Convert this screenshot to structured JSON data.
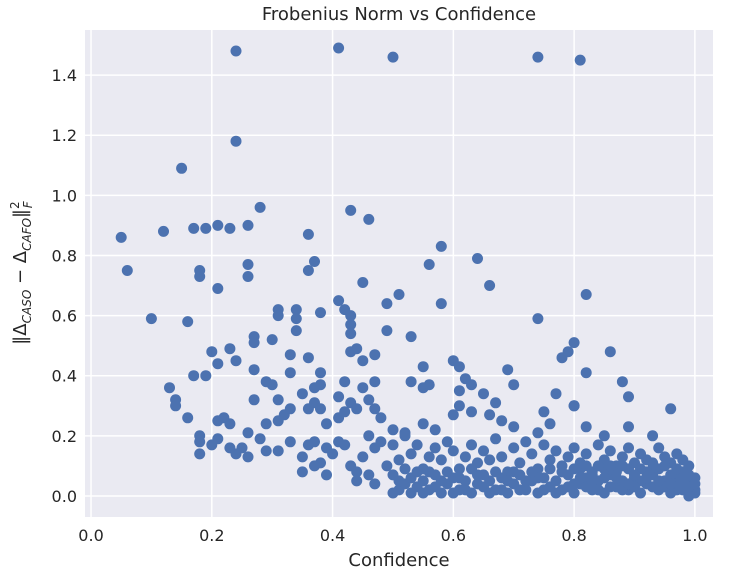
{
  "chart_data": {
    "type": "scatter",
    "title": "Frobenius Norm vs Confidence",
    "xlabel": "Confidence",
    "ylabel": "‖Δ_CASO − Δ_CAFO‖²_F",
    "xlim": [
      -0.01,
      1.03
    ],
    "ylim": [
      -0.07,
      1.55
    ],
    "xticks": [
      0.0,
      0.2,
      0.4,
      0.6,
      0.8,
      1.0
    ],
    "xtick_labels": [
      "0.0",
      "0.2",
      "0.4",
      "0.6",
      "0.8",
      "1.0"
    ],
    "yticks": [
      0.0,
      0.2,
      0.4,
      0.6,
      0.8,
      1.0,
      1.2,
      1.4
    ],
    "ytick_labels": [
      "0.0",
      "0.2",
      "0.4",
      "0.6",
      "0.8",
      "1.0",
      "1.2",
      "1.4"
    ],
    "grid": true,
    "colors": {
      "background": "#eaeaf2",
      "grid": "#ffffff",
      "marker": "#4c72b0",
      "text": "#262626"
    },
    "points": [
      [
        0.24,
        1.48
      ],
      [
        0.41,
        1.49
      ],
      [
        0.5,
        1.46
      ],
      [
        0.74,
        1.46
      ],
      [
        0.81,
        1.45
      ],
      [
        0.24,
        1.18
      ],
      [
        0.15,
        1.09
      ],
      [
        0.28,
        0.96
      ],
      [
        0.43,
        0.95
      ],
      [
        0.46,
        0.92
      ],
      [
        0.05,
        0.86
      ],
      [
        0.12,
        0.88
      ],
      [
        0.17,
        0.89
      ],
      [
        0.19,
        0.89
      ],
      [
        0.21,
        0.9
      ],
      [
        0.23,
        0.89
      ],
      [
        0.26,
        0.9
      ],
      [
        0.36,
        0.87
      ],
      [
        0.58,
        0.83
      ],
      [
        0.64,
        0.79
      ],
      [
        0.06,
        0.75
      ],
      [
        0.18,
        0.75
      ],
      [
        0.18,
        0.73
      ],
      [
        0.26,
        0.77
      ],
      [
        0.26,
        0.73
      ],
      [
        0.36,
        0.75
      ],
      [
        0.37,
        0.78
      ],
      [
        0.45,
        0.71
      ],
      [
        0.56,
        0.77
      ],
      [
        0.66,
        0.7
      ],
      [
        0.21,
        0.69
      ],
      [
        0.41,
        0.65
      ],
      [
        0.49,
        0.64
      ],
      [
        0.51,
        0.67
      ],
      [
        0.58,
        0.64
      ],
      [
        0.82,
        0.67
      ],
      [
        0.1,
        0.59
      ],
      [
        0.16,
        0.58
      ],
      [
        0.31,
        0.62
      ],
      [
        0.31,
        0.6
      ],
      [
        0.34,
        0.62
      ],
      [
        0.34,
        0.59
      ],
      [
        0.38,
        0.61
      ],
      [
        0.42,
        0.62
      ],
      [
        0.43,
        0.6
      ],
      [
        0.43,
        0.57
      ],
      [
        0.74,
        0.59
      ],
      [
        0.27,
        0.53
      ],
      [
        0.27,
        0.51
      ],
      [
        0.3,
        0.52
      ],
      [
        0.34,
        0.55
      ],
      [
        0.43,
        0.54
      ],
      [
        0.44,
        0.49
      ],
      [
        0.49,
        0.55
      ],
      [
        0.53,
        0.53
      ],
      [
        0.8,
        0.51
      ],
      [
        0.86,
        0.48
      ],
      [
        0.79,
        0.48
      ],
      [
        0.2,
        0.48
      ],
      [
        0.23,
        0.49
      ],
      [
        0.24,
        0.45
      ],
      [
        0.21,
        0.44
      ],
      [
        0.33,
        0.47
      ],
      [
        0.36,
        0.46
      ],
      [
        0.38,
        0.41
      ],
      [
        0.43,
        0.48
      ],
      [
        0.45,
        0.45
      ],
      [
        0.47,
        0.47
      ],
      [
        0.55,
        0.43
      ],
      [
        0.6,
        0.45
      ],
      [
        0.61,
        0.43
      ],
      [
        0.69,
        0.42
      ],
      [
        0.78,
        0.46
      ],
      [
        0.82,
        0.41
      ],
      [
        0.13,
        0.36
      ],
      [
        0.14,
        0.32
      ],
      [
        0.17,
        0.4
      ],
      [
        0.19,
        0.4
      ],
      [
        0.27,
        0.42
      ],
      [
        0.27,
        0.32
      ],
      [
        0.29,
        0.38
      ],
      [
        0.3,
        0.37
      ],
      [
        0.31,
        0.32
      ],
      [
        0.33,
        0.41
      ],
      [
        0.35,
        0.34
      ],
      [
        0.37,
        0.36
      ],
      [
        0.38,
        0.37
      ],
      [
        0.41,
        0.33
      ],
      [
        0.42,
        0.38
      ],
      [
        0.45,
        0.36
      ],
      [
        0.47,
        0.38
      ],
      [
        0.53,
        0.38
      ],
      [
        0.55,
        0.36
      ],
      [
        0.56,
        0.37
      ],
      [
        0.61,
        0.35
      ],
      [
        0.62,
        0.39
      ],
      [
        0.63,
        0.37
      ],
      [
        0.65,
        0.34
      ],
      [
        0.67,
        0.31
      ],
      [
        0.7,
        0.37
      ],
      [
        0.77,
        0.34
      ],
      [
        0.8,
        0.3
      ],
      [
        0.88,
        0.38
      ],
      [
        0.89,
        0.33
      ],
      [
        0.14,
        0.3
      ],
      [
        0.16,
        0.26
      ],
      [
        0.18,
        0.2
      ],
      [
        0.18,
        0.14
      ],
      [
        0.21,
        0.25
      ],
      [
        0.22,
        0.26
      ],
      [
        0.23,
        0.24
      ],
      [
        0.26,
        0.21
      ],
      [
        0.29,
        0.24
      ],
      [
        0.31,
        0.25
      ],
      [
        0.32,
        0.27
      ],
      [
        0.33,
        0.29
      ],
      [
        0.36,
        0.29
      ],
      [
        0.37,
        0.31
      ],
      [
        0.38,
        0.29
      ],
      [
        0.39,
        0.24
      ],
      [
        0.41,
        0.26
      ],
      [
        0.42,
        0.28
      ],
      [
        0.43,
        0.31
      ],
      [
        0.44,
        0.29
      ],
      [
        0.46,
        0.32
      ],
      [
        0.47,
        0.29
      ],
      [
        0.48,
        0.26
      ],
      [
        0.5,
        0.22
      ],
      [
        0.52,
        0.21
      ],
      [
        0.55,
        0.24
      ],
      [
        0.57,
        0.22
      ],
      [
        0.6,
        0.27
      ],
      [
        0.61,
        0.3
      ],
      [
        0.63,
        0.28
      ],
      [
        0.66,
        0.27
      ],
      [
        0.68,
        0.25
      ],
      [
        0.7,
        0.23
      ],
      [
        0.74,
        0.21
      ],
      [
        0.75,
        0.28
      ],
      [
        0.76,
        0.24
      ],
      [
        0.8,
        0.3
      ],
      [
        0.82,
        0.23
      ],
      [
        0.85,
        0.2
      ],
      [
        0.89,
        0.23
      ],
      [
        0.93,
        0.2
      ],
      [
        0.96,
        0.29
      ],
      [
        0.18,
        0.18
      ],
      [
        0.2,
        0.17
      ],
      [
        0.21,
        0.19
      ],
      [
        0.23,
        0.16
      ],
      [
        0.24,
        0.14
      ],
      [
        0.25,
        0.16
      ],
      [
        0.26,
        0.13
      ],
      [
        0.28,
        0.19
      ],
      [
        0.29,
        0.15
      ],
      [
        0.31,
        0.15
      ],
      [
        0.33,
        0.18
      ],
      [
        0.35,
        0.13
      ],
      [
        0.36,
        0.17
      ],
      [
        0.37,
        0.18
      ],
      [
        0.38,
        0.11
      ],
      [
        0.39,
        0.07
      ],
      [
        0.39,
        0.16
      ],
      [
        0.4,
        0.14
      ],
      [
        0.41,
        0.18
      ],
      [
        0.42,
        0.17
      ],
      [
        0.43,
        0.1
      ],
      [
        0.44,
        0.08
      ],
      [
        0.45,
        0.13
      ],
      [
        0.46,
        0.2
      ],
      [
        0.47,
        0.16
      ],
      [
        0.48,
        0.18
      ],
      [
        0.49,
        0.1
      ],
      [
        0.5,
        0.17
      ],
      [
        0.51,
        0.12
      ],
      [
        0.52,
        0.2
      ],
      [
        0.53,
        0.14
      ],
      [
        0.54,
        0.17
      ],
      [
        0.55,
        0.09
      ],
      [
        0.56,
        0.13
      ],
      [
        0.57,
        0.16
      ],
      [
        0.58,
        0.12
      ],
      [
        0.59,
        0.18
      ],
      [
        0.6,
        0.15
      ],
      [
        0.61,
        0.09
      ],
      [
        0.62,
        0.13
      ],
      [
        0.63,
        0.17
      ],
      [
        0.64,
        0.11
      ],
      [
        0.65,
        0.15
      ],
      [
        0.66,
        0.12
      ],
      [
        0.67,
        0.19
      ],
      [
        0.68,
        0.13
      ],
      [
        0.69,
        0.08
      ],
      [
        0.7,
        0.16
      ],
      [
        0.71,
        0.11
      ],
      [
        0.72,
        0.18
      ],
      [
        0.73,
        0.14
      ],
      [
        0.74,
        0.09
      ],
      [
        0.75,
        0.17
      ],
      [
        0.76,
        0.12
      ],
      [
        0.77,
        0.15
      ],
      [
        0.78,
        0.1
      ],
      [
        0.79,
        0.13
      ],
      [
        0.8,
        0.16
      ],
      [
        0.81,
        0.11
      ],
      [
        0.82,
        0.14
      ],
      [
        0.83,
        0.08
      ],
      [
        0.84,
        0.17
      ],
      [
        0.85,
        0.12
      ],
      [
        0.86,
        0.15
      ],
      [
        0.87,
        0.1
      ],
      [
        0.88,
        0.13
      ],
      [
        0.89,
        0.16
      ],
      [
        0.9,
        0.11
      ],
      [
        0.91,
        0.14
      ],
      [
        0.92,
        0.12
      ],
      [
        0.93,
        0.09
      ],
      [
        0.94,
        0.16
      ],
      [
        0.95,
        0.13
      ],
      [
        0.96,
        0.11
      ],
      [
        0.97,
        0.14
      ],
      [
        0.98,
        0.12
      ],
      [
        0.99,
        0.1
      ],
      [
        0.35,
        0.08
      ],
      [
        0.37,
        0.1
      ],
      [
        0.44,
        0.05
      ],
      [
        0.46,
        0.07
      ],
      [
        0.47,
        0.04
      ],
      [
        0.5,
        0.07
      ],
      [
        0.51,
        0.02
      ],
      [
        0.52,
        0.04
      ],
      [
        0.53,
        0.01
      ],
      [
        0.53,
        0.06
      ],
      [
        0.54,
        0.03
      ],
      [
        0.55,
        0.05
      ],
      [
        0.56,
        0.02
      ],
      [
        0.57,
        0.07
      ],
      [
        0.58,
        0.01
      ],
      [
        0.59,
        0.04
      ],
      [
        0.6,
        0.06
      ],
      [
        0.61,
        0.02
      ],
      [
        0.62,
        0.05
      ],
      [
        0.63,
        0.01
      ],
      [
        0.64,
        0.07
      ],
      [
        0.65,
        0.03
      ],
      [
        0.66,
        0.05
      ],
      [
        0.67,
        0.02
      ],
      [
        0.68,
        0.06
      ],
      [
        0.69,
        0.01
      ],
      [
        0.7,
        0.04
      ],
      [
        0.71,
        0.07
      ],
      [
        0.72,
        0.02
      ],
      [
        0.73,
        0.05
      ],
      [
        0.74,
        0.01
      ],
      [
        0.75,
        0.06
      ],
      [
        0.76,
        0.03
      ],
      [
        0.77,
        0.05
      ],
      [
        0.78,
        0.02
      ],
      [
        0.79,
        0.07
      ],
      [
        0.8,
        0.01
      ],
      [
        0.81,
        0.04
      ],
      [
        0.82,
        0.06
      ],
      [
        0.83,
        0.02
      ],
      [
        0.84,
        0.05
      ],
      [
        0.85,
        0.01
      ],
      [
        0.86,
        0.07
      ],
      [
        0.87,
        0.03
      ],
      [
        0.88,
        0.05
      ],
      [
        0.89,
        0.02
      ],
      [
        0.9,
        0.06
      ],
      [
        0.91,
        0.01
      ],
      [
        0.92,
        0.04
      ],
      [
        0.93,
        0.07
      ],
      [
        0.94,
        0.02
      ],
      [
        0.95,
        0.05
      ],
      [
        0.96,
        0.01
      ],
      [
        0.97,
        0.06
      ],
      [
        0.98,
        0.03
      ],
      [
        0.99,
        0.05
      ],
      [
        1.0,
        0.02
      ],
      [
        1.0,
        0.01
      ],
      [
        0.99,
        0.0
      ],
      [
        0.98,
        0.08
      ],
      [
        0.97,
        0.02
      ],
      [
        0.96,
        0.07
      ],
      [
        0.95,
        0.03
      ],
      [
        0.94,
        0.09
      ],
      [
        0.93,
        0.03
      ],
      [
        0.92,
        0.08
      ],
      [
        0.91,
        0.05
      ],
      [
        0.9,
        0.03
      ],
      [
        0.89,
        0.09
      ],
      [
        0.88,
        0.02
      ],
      [
        0.87,
        0.08
      ],
      [
        0.86,
        0.03
      ],
      [
        0.85,
        0.09
      ],
      [
        0.84,
        0.02
      ],
      [
        0.83,
        0.07
      ],
      [
        0.82,
        0.03
      ],
      [
        0.81,
        0.09
      ],
      [
        0.8,
        0.04
      ],
      [
        0.79,
        0.03
      ],
      [
        0.78,
        0.08
      ],
      [
        0.77,
        0.01
      ],
      [
        0.76,
        0.09
      ],
      [
        0.75,
        0.02
      ],
      [
        0.74,
        0.06
      ],
      [
        0.73,
        0.08
      ],
      [
        0.72,
        0.05
      ],
      [
        0.71,
        0.02
      ],
      [
        0.7,
        0.08
      ],
      [
        0.69,
        0.05
      ],
      [
        0.68,
        0.02
      ],
      [
        0.67,
        0.08
      ],
      [
        0.66,
        0.01
      ],
      [
        0.65,
        0.07
      ],
      [
        0.64,
        0.04
      ],
      [
        0.63,
        0.09
      ],
      [
        0.62,
        0.02
      ],
      [
        0.61,
        0.06
      ],
      [
        0.6,
        0.01
      ],
      [
        0.59,
        0.08
      ],
      [
        0.58,
        0.05
      ],
      [
        0.57,
        0.03
      ],
      [
        0.56,
        0.08
      ],
      [
        0.55,
        0.01
      ],
      [
        0.54,
        0.08
      ],
      [
        0.52,
        0.09
      ],
      [
        0.51,
        0.05
      ],
      [
        0.5,
        0.01
      ],
      [
        0.97,
        0.04
      ],
      [
        0.98,
        0.05
      ],
      [
        0.99,
        0.03
      ],
      [
        1.0,
        0.04
      ],
      [
        1.0,
        0.06
      ],
      [
        0.99,
        0.07
      ],
      [
        0.98,
        0.02
      ],
      [
        0.97,
        0.09
      ],
      [
        0.96,
        0.04
      ],
      [
        0.95,
        0.1
      ],
      [
        0.94,
        0.05
      ],
      [
        0.93,
        0.11
      ],
      [
        0.92,
        0.06
      ],
      [
        0.91,
        0.09
      ],
      [
        0.9,
        0.07
      ],
      [
        0.89,
        0.04
      ],
      [
        0.88,
        0.1
      ],
      [
        0.87,
        0.06
      ],
      [
        0.86,
        0.1
      ],
      [
        0.85,
        0.06
      ],
      [
        0.84,
        0.1
      ],
      [
        0.83,
        0.05
      ],
      [
        0.82,
        0.1
      ],
      [
        0.81,
        0.06
      ],
      [
        0.8,
        0.09
      ]
    ]
  }
}
